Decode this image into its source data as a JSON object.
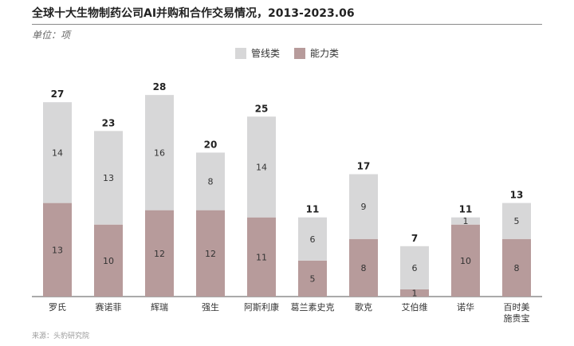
{
  "title": "全球十大生物制药公司AI并购和合作交易情况，2013-2023.06",
  "unit": "单位：项",
  "source": "来源：头豹研究院",
  "colors": {
    "pipeline": "#d7d7d8",
    "capability": "#b79b9b"
  },
  "chart_data": {
    "type": "bar",
    "stacked": true,
    "categories": [
      "罗氏",
      "赛诺菲",
      "辉瑞",
      "强生",
      "阿斯利康",
      "葛兰素史克",
      "歌克",
      "艾伯维",
      "诺华",
      "百时美施贵宝"
    ],
    "series": [
      {
        "name": "能力类",
        "values": [
          13,
          10,
          12,
          12,
          11,
          5,
          8,
          1,
          10,
          8
        ]
      },
      {
        "name": "管线类",
        "values": [
          14,
          13,
          16,
          8,
          14,
          6,
          9,
          6,
          1,
          5
        ]
      }
    ],
    "totals": [
      27,
      23,
      28,
      20,
      25,
      11,
      17,
      7,
      11,
      13
    ],
    "ylim": [
      0,
      30
    ],
    "legend": "top-center",
    "grid": false
  }
}
